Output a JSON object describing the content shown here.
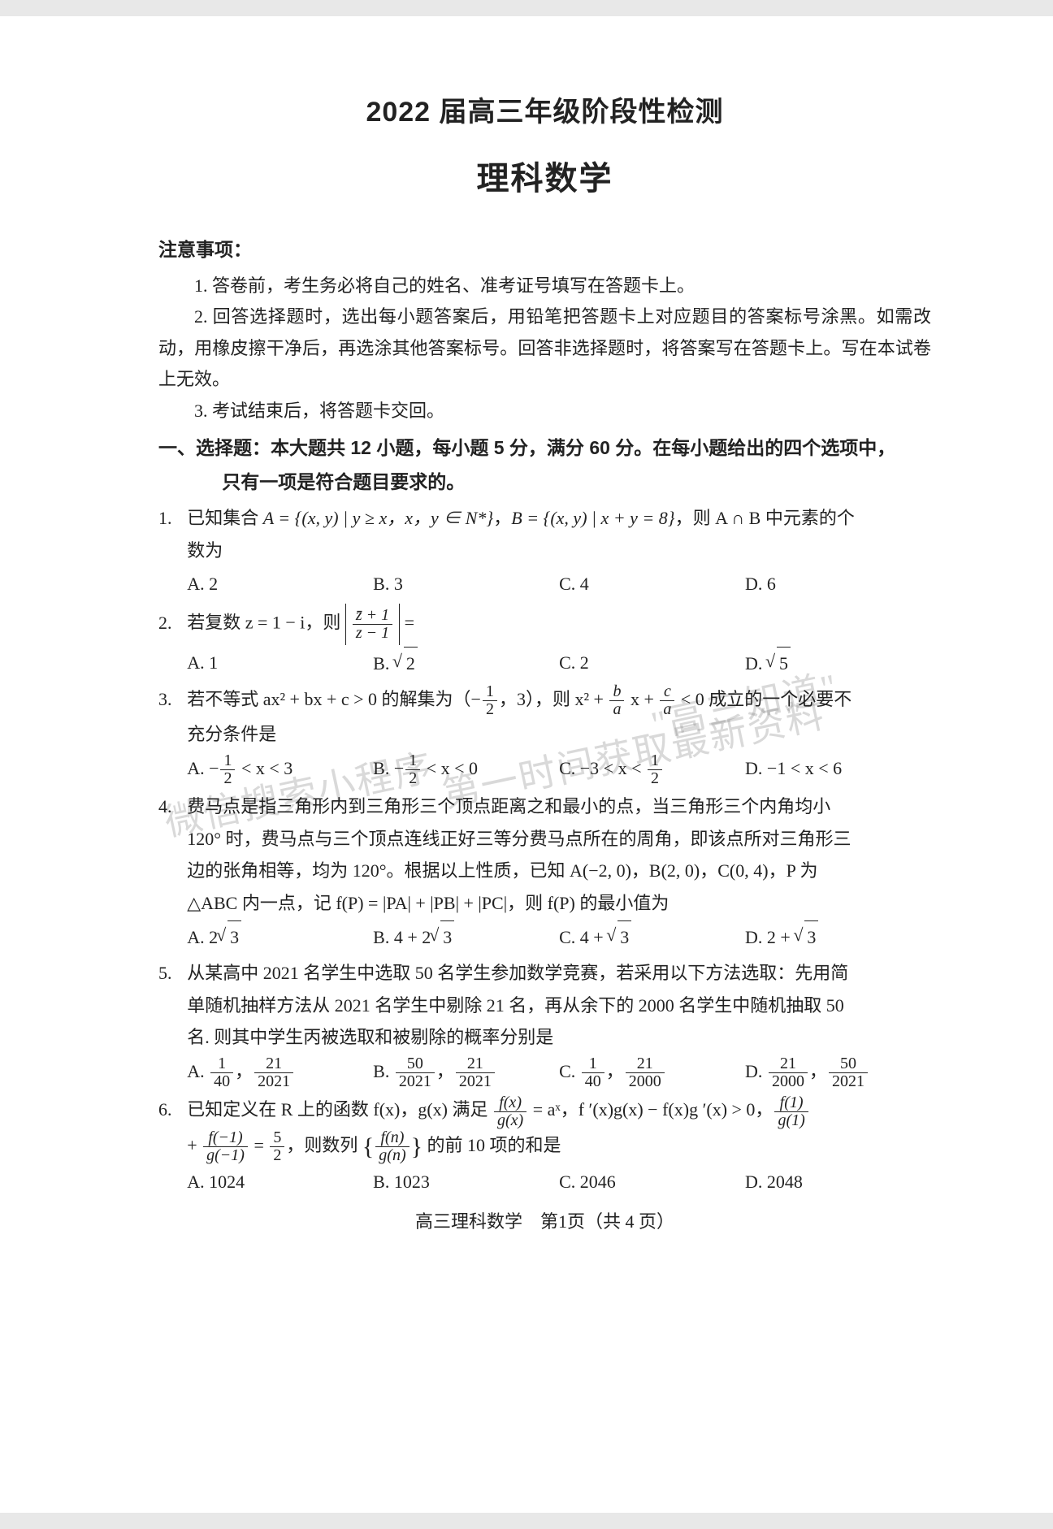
{
  "header": {
    "title1": "2022 届高三年级阶段性检测",
    "title2": "理科数学"
  },
  "notice": {
    "label": "注意事项：",
    "items": [
      "1. 答卷前，考生务必将自己的姓名、准考证号填写在答题卡上。",
      "2. 回答选择题时，选出每小题答案后，用铅笔把答题卡上对应题目的答案标号涂黑。如需改动，用橡皮擦干净后，再选涂其他答案标号。回答非选择题时，将答案写在答题卡上。写在本试卷上无效。",
      "3. 考试结束后，将答题卡交回。"
    ]
  },
  "section1": {
    "line1": "一、选择题：本大题共 12 小题，每小题 5 分，满分 60 分。在每小题给出的四个选项中，",
    "line2": "只有一项是符合题目要求的。"
  },
  "q1": {
    "num": "1.",
    "text_a": "已知集合 ",
    "set_a": "A = {(x, y) | y ≥ x，x，y ∈ N*}",
    "comma": "，",
    "set_b": "B = {(x, y) | x + y = 8}",
    "text_b": "，则 A ∩ B 中元素的个",
    "text_c": "数为",
    "choices": {
      "A": "A.  2",
      "B": "B.  3",
      "C": "C.  4",
      "D": "D.  6"
    }
  },
  "q2": {
    "num": "2.",
    "text_a": "若复数 z = 1 − i，则 ",
    "frac_num": "z̄ + 1",
    "frac_den": "z − 1",
    "text_b": " = ",
    "choices": {
      "A": "A.  1",
      "B_pre": "B.  ",
      "B_rad": "2",
      "C": "C.  2",
      "D_pre": "D.  ",
      "D_rad": "5"
    }
  },
  "q3": {
    "num": "3.",
    "text_a": "若不等式 ax² + bx + c > 0 的解集为（−",
    "half_num": "1",
    "half_den": "2",
    "text_b": "，3），则 x² + ",
    "ba_num": "b",
    "ba_den": "a",
    "text_c": " x + ",
    "ca_num": "c",
    "ca_den": "a",
    "text_d": " < 0 成立的一个必要不",
    "text_e": "充分条件是",
    "choices": {
      "A_pre": "A.  −",
      "A_n": "1",
      "A_d": "2",
      "A_post": " < x < 3",
      "B_pre": "B.  −",
      "B_n": "1",
      "B_d": "2",
      "B_post": " < x < 0",
      "C_pre": "C.  −3 < x < ",
      "C_n": "1",
      "C_d": "2",
      "D": "D.  −1 < x < 6"
    }
  },
  "q4": {
    "num": "4.",
    "line1": "费马点是指三角形内到三角形三个顶点距离之和最小的点，当三角形三个内角均小",
    "line2": "120° 时，费马点与三个顶点连线正好三等分费马点所在的周角，即该点所对三角形三",
    "line3": "边的张角相等，均为 120°。根据以上性质，已知 A(−2, 0)，B(2, 0)，C(0, 4)，P 为",
    "line4": "△ABC 内一点，记 f(P) = |PA| + |PB| + |PC|，则 f(P) 的最小值为",
    "choices": {
      "A_pre": "A.  2",
      "A_rad": "3",
      "B_pre": "B.  4 + 2",
      "B_rad": "3",
      "C_pre": "C.  4 + ",
      "C_rad": "3",
      "D_pre": "D.  2 + ",
      "D_rad": "3"
    }
  },
  "q5": {
    "num": "5.",
    "line1": "从某高中 2021 名学生中选取 50 名学生参加数学竞赛，若采用以下方法选取：先用简",
    "line2": "单随机抽样方法从 2021 名学生中剔除 21 名，再从余下的 2000 名学生中随机抽取 50",
    "line3": "名. 则其中学生丙被选取和被剔除的概率分别是",
    "choices": {
      "A_pre": "A.  ",
      "A_n1": "1",
      "A_d1": "40",
      "A_sep": "，",
      "A_n2": "21",
      "A_d2": "2021",
      "B_pre": "B.  ",
      "B_n1": "50",
      "B_d1": "2021",
      "B_sep": "，",
      "B_n2": "21",
      "B_d2": "2021",
      "C_pre": "C.  ",
      "C_n1": "1",
      "C_d1": "40",
      "C_sep": "，",
      "C_n2": "21",
      "C_d2": "2000",
      "D_pre": "D.  ",
      "D_n1": "21",
      "D_d1": "2000",
      "D_sep": "，",
      "D_n2": "50",
      "D_d2": "2021"
    }
  },
  "q6": {
    "num": "6.",
    "text_a": "已知定义在 R 上的函数 f(x)，g(x) 满足 ",
    "r1_num": "f(x)",
    "r1_den": "g(x)",
    "text_b": " = aˣ，f ′(x)g(x) − f(x)g ′(x) > 0，",
    "r2_num": "f(1)",
    "r2_den": "g(1)",
    "text_c": "+ ",
    "r3_num": "f(−1)",
    "r3_den": "g(−1)",
    "text_d": " = ",
    "r4_num": "5",
    "r4_den": "2",
    "text_e": "，则数列 ",
    "seq_num": "f(n)",
    "seq_den": "g(n)",
    "text_f": " 的前 10 项的和是",
    "choices": {
      "A": "A.  1024",
      "B": "B.  1023",
      "C": "C.  2046",
      "D": "D.  2048"
    }
  },
  "footer": {
    "text": "高三理科数学　第1页（共 4 页）"
  },
  "watermark": {
    "w1": "微信搜索小程序",
    "w2": "第一时间获取最新资料",
    "w3": "\"高三知道\""
  }
}
